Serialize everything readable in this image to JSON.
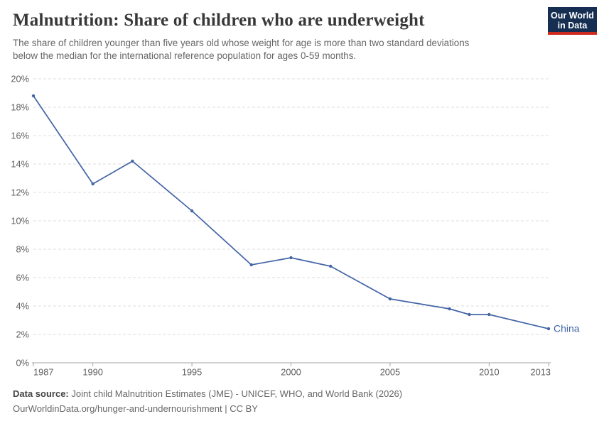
{
  "header": {
    "title": "Malnutrition: Share of children who are underweight",
    "subtitle_lines": [
      "The share of children younger than five years old whose weight for age is more than two standard deviations",
      "below the median for the international reference population for ages 0-59 months."
    ]
  },
  "logo": {
    "line1": "Our World",
    "line2": "in Data",
    "bg_color": "#152E52",
    "stripe_color": "#CD2A20"
  },
  "chart_data": {
    "type": "line",
    "title": "Malnutrition: Share of children who are underweight",
    "x": [
      1987,
      1990,
      1992,
      1995,
      1998,
      2000,
      2002,
      2005,
      2008,
      2009,
      2010,
      2013
    ],
    "series": [
      {
        "name": "China",
        "color": "#4365A6",
        "values": [
          18.8,
          12.6,
          14.2,
          10.7,
          6.9,
          7.4,
          6.8,
          4.5,
          3.8,
          3.4,
          3.4,
          2.4
        ]
      }
    ],
    "xticks": [
      1987,
      1990,
      1995,
      2000,
      2005,
      2010,
      2013
    ],
    "yticks": [
      0,
      2,
      4,
      6,
      8,
      10,
      12,
      14,
      16,
      18,
      20
    ],
    "ytick_suffix": "%",
    "xlim": [
      1987,
      2013
    ],
    "ylim": [
      0,
      20
    ],
    "grid": "horizontal-dashed",
    "legend_position": "end-of-line",
    "gridline_color": "#dcdcdc",
    "axis_color": "#a5a5a5",
    "tick_label_color": "#5f5f5f"
  },
  "footer": {
    "source_label": "Data source:",
    "source_text": "Joint child Malnutrition Estimates (JME) - UNICEF, WHO, and World Bank (2026)",
    "link_text": "OurWorldinData.org/hunger-and-undernourishment",
    "separator": "|",
    "license": "CC BY"
  }
}
